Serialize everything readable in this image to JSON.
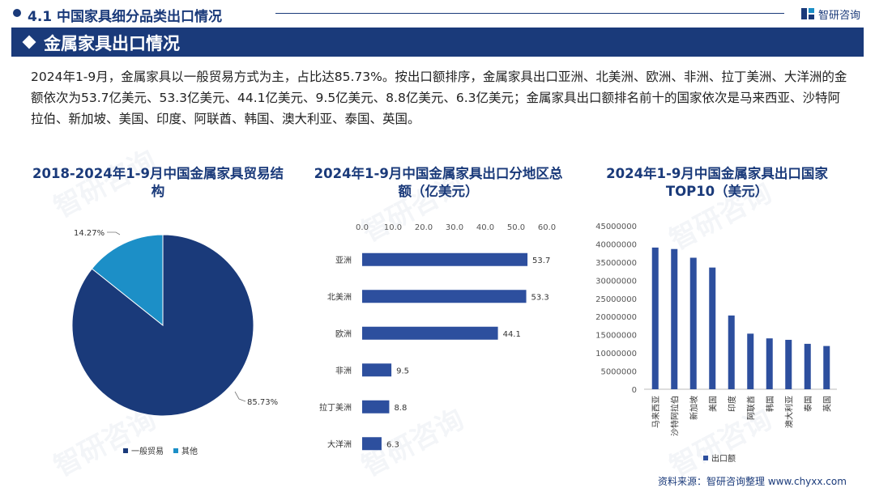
{
  "header": {
    "section_title": "4.1 中国家具细分品类出口情况",
    "brand": "智研咨询"
  },
  "banner": {
    "title": "金属家具出口情况"
  },
  "body_text": "2024年1-9月，金属家具以一般贸易方式为主，占比达85.73%。按出口额排序，金属家具出口亚洲、北美洲、欧洲、非洲、拉丁美洲、大洋洲的金额依次为53.7亿美元、53.3亿美元、44.1亿美元、9.5亿美元、8.8亿美元、6.3亿美元；金属家具出口额排名前十的国家依次是马来西亚、沙特阿拉伯、新加坡、美国、印度、阿联酋、韩国、澳大利亚、泰国、英国。",
  "footer": {
    "source": "资料来源：智研咨询整理  www.chyxx.com"
  },
  "colors": {
    "primary": "#1a3a7a",
    "secondary": "#1c8fc7",
    "bar": "#2d4f9e"
  },
  "chart_data": [
    {
      "type": "pie",
      "title": "2018-2024年1-9月中国金属家具贸易结构",
      "categories": [
        "一般贸易",
        "其他"
      ],
      "values": [
        85.73,
        14.27
      ],
      "labels": [
        "85.73%",
        "14.27%"
      ],
      "legend": {
        "position": "bottom",
        "items": [
          "一般贸易",
          "其他"
        ]
      }
    },
    {
      "type": "bar",
      "orientation": "horizontal",
      "title": "2024年1-9月中国金属家具出口分地区总额（亿美元）",
      "categories": [
        "亚洲",
        "北美洲",
        "欧洲",
        "非洲",
        "拉丁美洲",
        "大洋洲"
      ],
      "values": [
        53.7,
        53.3,
        44.1,
        9.5,
        8.8,
        6.3
      ],
      "value_labels": [
        "53.7",
        "53.3",
        "44.1",
        "9.5",
        "8.8",
        "6.3"
      ],
      "xlim": [
        0,
        60
      ],
      "xticks": [
        "0.0",
        "10.0",
        "20.0",
        "30.0",
        "40.0",
        "50.0",
        "60.0"
      ],
      "axis_position": "top"
    },
    {
      "type": "bar",
      "orientation": "vertical",
      "title": "2024年1-9月中国金属家具出口国家TOP10（美元）",
      "categories": [
        "马来西亚",
        "沙特阿拉伯",
        "新加坡",
        "美国",
        "印度",
        "阿联酋",
        "韩国",
        "澳大利亚",
        "泰国",
        "英国"
      ],
      "series": [
        {
          "name": "出口额",
          "values": [
            39000000,
            38600000,
            36200000,
            33500000,
            20300000,
            15300000,
            14000000,
            13600000,
            12500000,
            11900000
          ]
        }
      ],
      "ylim": [
        0,
        45000000
      ],
      "yticks": [
        "0",
        "5000000",
        "10000000",
        "15000000",
        "20000000",
        "25000000",
        "30000000",
        "35000000",
        "40000000",
        "45000000"
      ],
      "legend": {
        "position": "bottom",
        "items": [
          "出口额"
        ]
      }
    }
  ]
}
